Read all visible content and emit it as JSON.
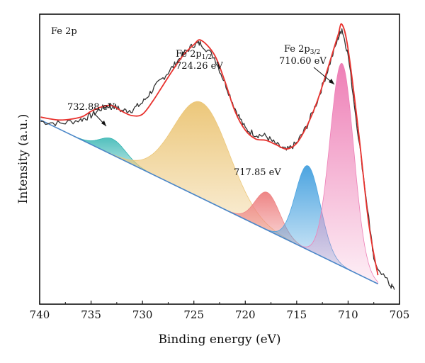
{
  "chart_data": {
    "type": "line",
    "panel_label": "Fe 2p",
    "xlabel": "Binding energy (eV)",
    "ylabel": "Intensity (a.u.)",
    "xlim": [
      740,
      705
    ],
    "x_reversed": true,
    "ylim": [
      0,
      100
    ],
    "y_ticks_shown": false,
    "x_ticks": [
      740,
      735,
      730,
      725,
      720,
      715,
      710,
      705
    ],
    "x_tick_labels": [
      "740",
      "735",
      "730",
      "725",
      "720",
      "715",
      "710",
      "705"
    ],
    "annotations": [
      {
        "text_main": "Fe 2p",
        "text_sub": "1/2",
        "value": "724.26 eV"
      },
      {
        "text_main": "Fe 2p",
        "text_sub": "3/2",
        "value": "710.60 eV"
      },
      {
        "text": "732.88 eV"
      },
      {
        "text": "717.85 eV"
      }
    ],
    "background": {
      "x": [
        739.9,
        707.1
      ],
      "y": [
        63.5,
        7.0
      ],
      "color": "#4a86c8"
    },
    "series": [
      {
        "role": "raw",
        "color": "#333333",
        "x": [
          739.9,
          738,
          736,
          735,
          734,
          733,
          732,
          731,
          730,
          729,
          728,
          727,
          726,
          725,
          724.3,
          723,
          722,
          721,
          720,
          719,
          718,
          717,
          716,
          715,
          714,
          713,
          712,
          711,
          710.6,
          710,
          709,
          708,
          707.5,
          706,
          705.5
        ],
        "y": [
          63,
          62.3,
          63.6,
          65,
          67.5,
          68.8,
          66.7,
          67,
          69.5,
          74,
          78,
          82,
          86.5,
          89.5,
          90,
          85,
          76.5,
          67.5,
          60.5,
          58.5,
          58,
          55,
          53,
          55.5,
          61.5,
          70,
          80.5,
          91.5,
          95,
          86,
          58,
          30,
          15,
          7,
          5
        ]
      },
      {
        "role": "envelope",
        "color": "#e8322e",
        "x": [
          739.9,
          738,
          736,
          735,
          734,
          733,
          732,
          731,
          730,
          729,
          728,
          727,
          726,
          725,
          724.3,
          723,
          722,
          721,
          720,
          719,
          718,
          717,
          716,
          715,
          714,
          713,
          712,
          711,
          710.6,
          710,
          709,
          708,
          707.1
        ],
        "y": [
          64.5,
          63.5,
          64.5,
          66.5,
          68,
          68.5,
          66.5,
          65,
          65.5,
          70,
          75.5,
          81,
          86,
          89.5,
          91,
          86,
          77,
          66.5,
          60,
          57,
          56.5,
          55,
          53.5,
          55.5,
          61.5,
          70,
          81,
          92.5,
          96.5,
          88,
          60,
          28,
          10
        ]
      },
      {
        "role": "peak",
        "name": "732.88 eV",
        "center": 732.88,
        "amplitude": 5.5,
        "sigma": 1.25,
        "color": "#2fb3b0"
      },
      {
        "role": "peak",
        "name": "724.26 eV",
        "center": 724.26,
        "amplitude": 33,
        "sigma": 2.7,
        "color": "#ecc77a"
      },
      {
        "role": "peak",
        "name": "717.85 eV",
        "center": 717.85,
        "amplitude": 13,
        "sigma": 1.2,
        "color": "#ee8585"
      },
      {
        "role": "peak",
        "name": "713.9 eV",
        "center": 713.9,
        "amplitude": 29,
        "sigma": 1.2,
        "color": "#4ca4e0"
      },
      {
        "role": "peak",
        "name": "710.60 eV",
        "center": 710.6,
        "amplitude": 70,
        "sigma": 1.15,
        "color": "#ee7fb6"
      }
    ]
  }
}
